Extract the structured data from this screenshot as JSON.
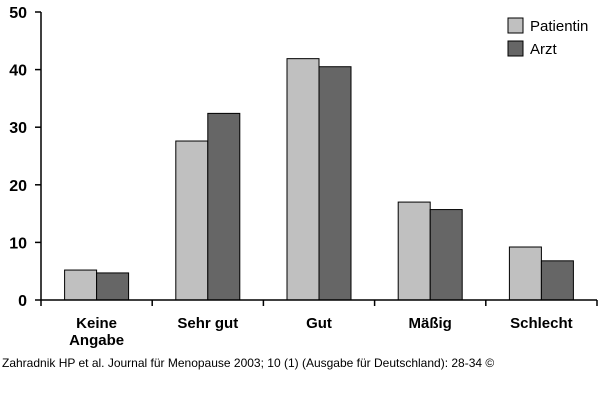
{
  "chart_data": {
    "type": "bar",
    "categories": [
      "Keine Angabe",
      "Sehr gut",
      "Gut",
      "Mäßig",
      "Schlecht"
    ],
    "category_lines": [
      [
        "Keine",
        "Angabe"
      ],
      [
        "Sehr gut"
      ],
      [
        "Gut"
      ],
      [
        "Mäßig"
      ],
      [
        "Schlecht"
      ]
    ],
    "series": [
      {
        "name": "Patientin",
        "values": [
          5.2,
          27.6,
          41.9,
          17.0,
          9.2
        ],
        "color": "#c0c0c0"
      },
      {
        "name": "Arzt",
        "values": [
          4.7,
          32.4,
          40.5,
          15.7,
          6.8
        ],
        "color": "#666666"
      }
    ],
    "ylim": [
      0,
      50
    ],
    "yticks": [
      "0",
      "10",
      "20",
      "30",
      "40",
      "50"
    ],
    "legend_position": "top-right",
    "grid": false,
    "title": "",
    "xlabel": "",
    "ylabel": ""
  },
  "footer": {
    "citation": "Zahradnik HP et al. Journal für Menopause 2003; 10 (1) (Ausgabe für Deutschland): 28-34 ©"
  }
}
